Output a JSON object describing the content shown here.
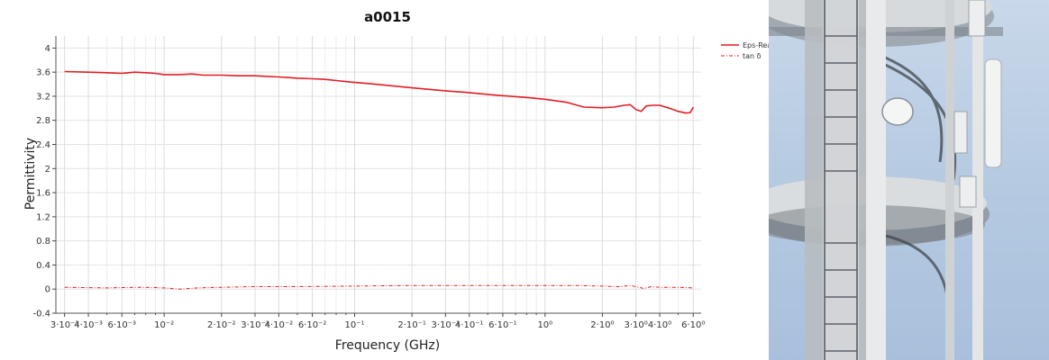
{
  "chart_data": {
    "type": "line",
    "title": "a0015",
    "xlabel": "Frequency (GHz)",
    "ylabel": "Permittivity",
    "x_scale": "log",
    "xlim": [
      0.0027,
      6.6
    ],
    "ylim": [
      -0.4,
      4.2
    ],
    "grid": true,
    "legend_position": "top-right",
    "x_ticks": [
      {
        "value": 0.003,
        "label": "3·10⁻³",
        "major": true
      },
      {
        "value": 0.004,
        "label": "4·10⁻³",
        "major": true
      },
      {
        "value": 0.005,
        "label": "",
        "major": false
      },
      {
        "value": 0.006,
        "label": "6·10⁻³",
        "major": true
      },
      {
        "value": 0.007,
        "label": "",
        "major": false
      },
      {
        "value": 0.008,
        "label": "",
        "major": false
      },
      {
        "value": 0.009,
        "label": "",
        "major": false
      },
      {
        "value": 0.01,
        "label": "10⁻²",
        "major": true
      },
      {
        "value": 0.02,
        "label": "2·10⁻²",
        "major": true
      },
      {
        "value": 0.03,
        "label": "3·10⁻²",
        "major": true
      },
      {
        "value": 0.04,
        "label": "4·10⁻²",
        "major": true
      },
      {
        "value": 0.05,
        "label": "",
        "major": false
      },
      {
        "value": 0.06,
        "label": "6·10⁻²",
        "major": true
      },
      {
        "value": 0.07,
        "label": "",
        "major": false
      },
      {
        "value": 0.08,
        "label": "",
        "major": false
      },
      {
        "value": 0.09,
        "label": "",
        "major": false
      },
      {
        "value": 0.1,
        "label": "10⁻¹",
        "major": true
      },
      {
        "value": 0.2,
        "label": "2·10⁻¹",
        "major": true
      },
      {
        "value": 0.3,
        "label": "3·10⁻¹",
        "major": true
      },
      {
        "value": 0.4,
        "label": "4·10⁻¹",
        "major": true
      },
      {
        "value": 0.5,
        "label": "",
        "major": false
      },
      {
        "value": 0.6,
        "label": "6·10⁻¹",
        "major": true
      },
      {
        "value": 0.7,
        "label": "",
        "major": false
      },
      {
        "value": 0.8,
        "label": "",
        "major": false
      },
      {
        "value": 0.9,
        "label": "",
        "major": false
      },
      {
        "value": 1,
        "label": "10⁰",
        "major": true
      },
      {
        "value": 2,
        "label": "2·10⁰",
        "major": true
      },
      {
        "value": 3,
        "label": "3·10⁰",
        "major": true
      },
      {
        "value": 4,
        "label": "4·10⁰",
        "major": true
      },
      {
        "value": 5,
        "label": "",
        "major": false
      },
      {
        "value": 6,
        "label": "6·10⁰",
        "major": true
      }
    ],
    "y_ticks": [
      {
        "value": -0.4,
        "label": "-0.4"
      },
      {
        "value": 0,
        "label": "0"
      },
      {
        "value": 0.4,
        "label": "0.4"
      },
      {
        "value": 0.8,
        "label": "0.8"
      },
      {
        "value": 1.2,
        "label": "1.2"
      },
      {
        "value": 1.6,
        "label": "1.6"
      },
      {
        "value": 2,
        "label": "2"
      },
      {
        "value": 2.4,
        "label": "2.4"
      },
      {
        "value": 2.8,
        "label": "2.8"
      },
      {
        "value": 3.2,
        "label": "3.2"
      },
      {
        "value": 3.6,
        "label": "3.6"
      },
      {
        "value": 4,
        "label": "4"
      }
    ],
    "series": [
      {
        "name": "Eps-Real",
        "color": "#e01f26",
        "style": "solid",
        "x": [
          0.003,
          0.004,
          0.005,
          0.006,
          0.0065,
          0.007,
          0.008,
          0.009,
          0.01,
          0.012,
          0.014,
          0.016,
          0.02,
          0.025,
          0.03,
          0.035,
          0.04,
          0.045,
          0.05,
          0.06,
          0.07,
          0.08,
          0.1,
          0.12,
          0.15,
          0.2,
          0.3,
          0.4,
          0.5,
          0.6,
          0.8,
          1.0,
          1.3,
          1.6,
          2.0,
          2.3,
          2.6,
          2.8,
          3.0,
          3.2,
          3.4,
          3.7,
          4.0,
          4.5,
          5.0,
          5.5,
          5.8,
          6.0
        ],
        "y": [
          3.61,
          3.6,
          3.59,
          3.58,
          3.59,
          3.6,
          3.59,
          3.58,
          3.56,
          3.56,
          3.57,
          3.55,
          3.55,
          3.54,
          3.54,
          3.53,
          3.52,
          3.51,
          3.5,
          3.49,
          3.48,
          3.46,
          3.43,
          3.41,
          3.38,
          3.34,
          3.29,
          3.26,
          3.23,
          3.21,
          3.18,
          3.15,
          3.1,
          3.02,
          3.01,
          3.02,
          3.05,
          3.06,
          2.98,
          2.95,
          3.04,
          3.05,
          3.05,
          3.0,
          2.95,
          2.92,
          2.93,
          3.02
        ]
      },
      {
        "name": "tan δ",
        "color": "#e01f26",
        "style": "dashdot",
        "x": [
          0.003,
          0.005,
          0.007,
          0.008,
          0.01,
          0.012,
          0.015,
          0.02,
          0.03,
          0.05,
          0.1,
          0.2,
          0.3,
          0.5,
          1.0,
          1.5,
          2.0,
          2.5,
          2.8,
          3.0,
          3.3,
          3.6,
          4.0,
          5.0,
          6.0
        ],
        "y": [
          0.03,
          0.02,
          0.03,
          0.03,
          0.02,
          0.0,
          0.02,
          0.03,
          0.04,
          0.04,
          0.05,
          0.06,
          0.06,
          0.06,
          0.06,
          0.06,
          0.05,
          0.04,
          0.06,
          0.04,
          0.01,
          0.04,
          0.03,
          0.03,
          0.02
        ]
      }
    ]
  }
}
